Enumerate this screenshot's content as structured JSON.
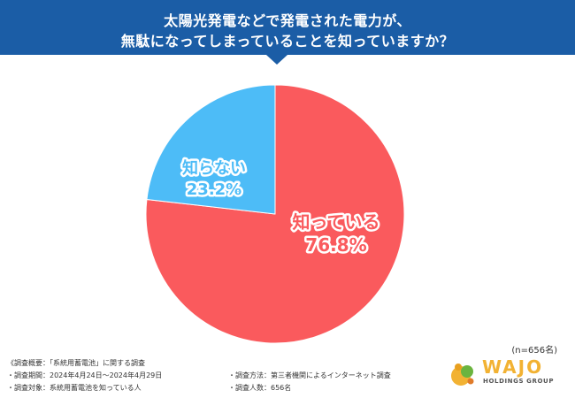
{
  "header": {
    "title_line_1": "太陽光発電などで発電された電力が、",
    "title_line_2": "無駄になってしまっていることを知っていますか？"
  },
  "chart_data": {
    "type": "pie",
    "title": "太陽光発電などで発電された電力が、無駄になってしまっていることを知っていますか？",
    "slices": [
      {
        "label": "知っている",
        "value": 76.8,
        "value_label": "76.8%",
        "color": "#fa5a5d"
      },
      {
        "label": "知らない",
        "value": 23.2,
        "value_label": "23.2%",
        "color": "#4dbcf7"
      }
    ],
    "sample_size": "(n=656名)"
  },
  "notes": {
    "overview": "《調査概要：「系統用蓄電池」に関する調査",
    "period": "・調査期間：2024年4月24日～2024年4月29日",
    "target": "・調査対象：系統用蓄電池を知っている人",
    "method": "・調査方法：第三者機関によるインターネット調査",
    "count": "・調査人数：656名"
  },
  "logo": {
    "name": "WAJO",
    "subtitle": "HOLDINGS GROUP"
  },
  "colors": {
    "header_bg": "#1b5da6",
    "know": "#fa5a5d",
    "dont_know": "#4dbcf7",
    "logo_gold": "#f2b233",
    "logo_green": "#6bb43f"
  }
}
